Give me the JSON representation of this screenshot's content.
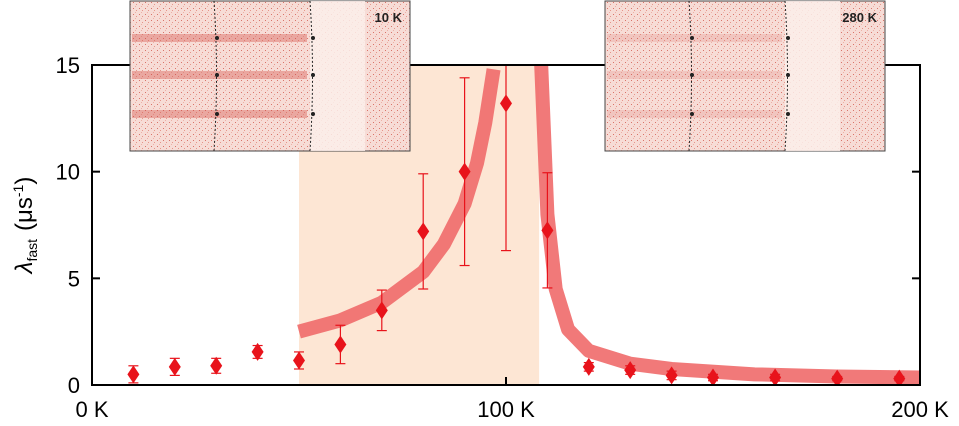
{
  "chart_data": {
    "type": "scatter",
    "y_label": {
      "symbol": "λ",
      "subscript": "fast",
      "open": "(μs",
      "superscript": "-1",
      "close": ")"
    },
    "xlim": [
      0,
      200
    ],
    "ylim": [
      0,
      15
    ],
    "xticks": [
      {
        "value": 0,
        "label": "0 K"
      },
      {
        "value": 100,
        "label": "100 K"
      },
      {
        "value": 200,
        "label": "200 K"
      }
    ],
    "yticks": [
      0,
      5,
      10,
      15
    ],
    "shaded_region": {
      "x": [
        50,
        108
      ],
      "color": "#fde6d4"
    },
    "series": [
      {
        "kind": "points",
        "color": "#e8131b",
        "x": [
          10,
          20,
          30,
          40,
          50,
          60,
          70,
          80,
          90,
          100,
          110,
          120,
          130,
          140,
          150,
          165,
          180,
          195
        ],
        "values": [
          0.5,
          0.85,
          0.9,
          1.55,
          1.15,
          1.9,
          3.5,
          7.2,
          10.0,
          13.2,
          7.25,
          0.85,
          0.7,
          0.45,
          0.35,
          0.35,
          0.3,
          0.3
        ],
        "errors": [
          0.4,
          0.4,
          0.35,
          0.3,
          0.4,
          0.9,
          0.95,
          2.7,
          4.4,
          6.9,
          2.7,
          0.2,
          0.2,
          0.2,
          0.15,
          0.15,
          0.1,
          0.1
        ]
      },
      {
        "kind": "fit",
        "color": "#f06a6a",
        "x": [
          50,
          60,
          70,
          80,
          85,
          90,
          93,
          95,
          97,
          100,
          108.5,
          110,
          112,
          115,
          120,
          130,
          140,
          160,
          180,
          200
        ],
        "values": [
          2.5,
          3.03,
          3.86,
          5.3,
          6.6,
          8.5,
          10.4,
          12.3,
          14.8,
          null,
          15,
          8,
          4.5,
          2.6,
          1.6,
          1.0,
          0.75,
          0.5,
          0.4,
          0.35
        ]
      }
    ],
    "insets": [
      {
        "label": "10 K"
      },
      {
        "label": "280 K"
      }
    ]
  }
}
